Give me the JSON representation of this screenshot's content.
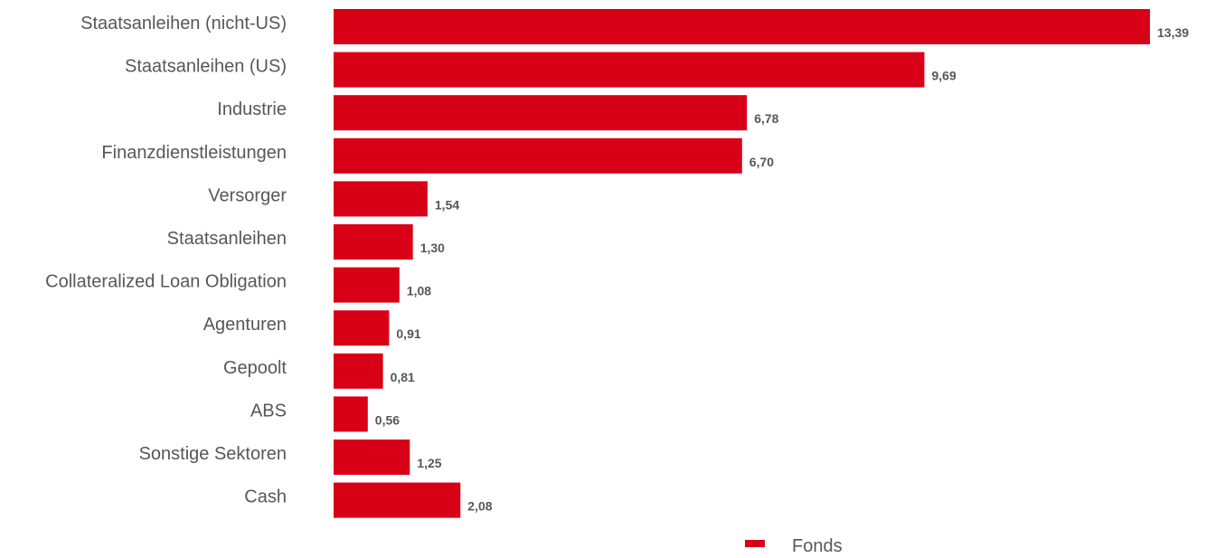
{
  "chart_data": {
    "type": "bar",
    "orientation": "horizontal",
    "categories": [
      "Staatsanleihen (nicht-US)",
      "Staatsanleihen (US)",
      "Industrie",
      "Finanzdienstleistungen",
      "Versorger",
      "Staatsanleihen",
      "Collateralized Loan Obligation",
      "Agenturen",
      "Gepoolt",
      "ABS",
      "Sonstige Sektoren",
      "Cash"
    ],
    "series": [
      {
        "name": "Fonds",
        "color": "#d80016",
        "values": [
          13.39,
          9.69,
          6.78,
          6.7,
          1.54,
          1.3,
          1.08,
          0.91,
          0.81,
          0.56,
          1.25,
          2.08
        ],
        "labels": [
          "13,39",
          "9,69",
          "6,78",
          "6,70",
          "1,54",
          "1,30",
          "1,08",
          "0,91",
          "0,81",
          "0,56",
          "1,25",
          "2,08"
        ]
      }
    ],
    "xlim": [
      0,
      13.39
    ],
    "grid": false,
    "legend": "bottom"
  },
  "colors": {
    "bar": "#d80016",
    "text": "#575757"
  }
}
